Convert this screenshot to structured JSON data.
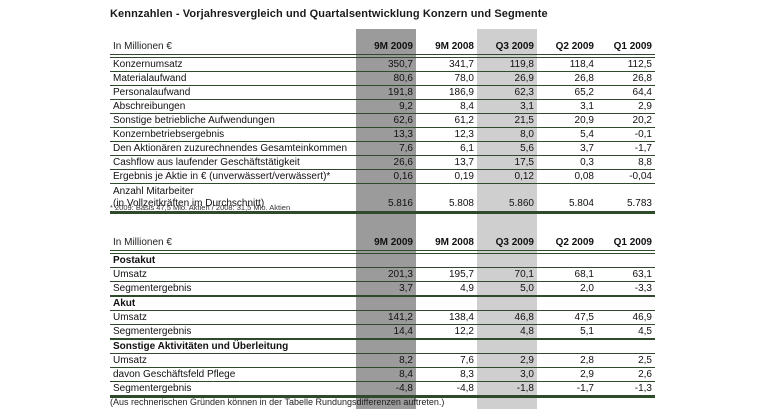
{
  "title": "Kennzahlen - Vorjahresvergleich und Quartalsentwicklung Konzern und Segmente",
  "unit_label": "In Millionen €",
  "columns": [
    "9M 2009",
    "9M 2008",
    "Q3 2009",
    "Q2 2009",
    "Q1 2009"
  ],
  "highlight": {
    "dark_column": "9M 2009",
    "light_column": "Q3 2009",
    "dark_color": "#9b9b9b",
    "light_color": "#cfcfcf",
    "rule_color": "#2e4a2a"
  },
  "konzern_table": {
    "rows": [
      {
        "label": "Konzernumsatz",
        "values": [
          "350,7",
          "341,7",
          "119,8",
          "118,4",
          "112,5"
        ]
      },
      {
        "label": "Materialaufwand",
        "values": [
          "80,6",
          "78,0",
          "26,9",
          "26,8",
          "26,8"
        ]
      },
      {
        "label": "Personalaufwand",
        "values": [
          "191,8",
          "186,9",
          "62,3",
          "65,2",
          "64,4"
        ]
      },
      {
        "label": "Abschreibungen",
        "values": [
          "9,2",
          "8,4",
          "3,1",
          "3,1",
          "2,9"
        ]
      },
      {
        "label": "Sonstige betriebliche Aufwendungen",
        "values": [
          "62,6",
          "61,2",
          "21,5",
          "20,9",
          "20,2"
        ]
      },
      {
        "label": "Konzernbetriebsergebnis",
        "values": [
          "13,3",
          "12,3",
          "8,0",
          "5,4",
          "-0,1"
        ]
      },
      {
        "label": "Den Aktionären zuzurechnendes Gesamteinkommen",
        "values": [
          "7,6",
          "6,1",
          "5,6",
          "3,7",
          "-1,7"
        ]
      },
      {
        "label": "Cashflow aus laufender Geschäftstätigkeit",
        "values": [
          "26,6",
          "13,7",
          "17,5",
          "0,3",
          "8,8"
        ]
      },
      {
        "label": "Ergebnis je Aktie in € (unverwässert/verwässert)*",
        "values": [
          "0,16",
          "0,19",
          "0,12",
          "0,08",
          "-0,04"
        ]
      },
      {
        "label": "Anzahl Mitarbeiter",
        "label2": "(in Vollzeitkräften im Durchschnitt)",
        "values": [
          "5.816",
          "5.808",
          "5.860",
          "5.804",
          "5.783"
        ]
      }
    ],
    "footnote": "* 2009: Basis 47,5 Mio. Aktien / 2008: 31,5 Mio. Aktien"
  },
  "segment_table": {
    "rows": [
      {
        "type": "section",
        "label": "Postakut"
      },
      {
        "type": "data",
        "label": "Umsatz",
        "values": [
          "201,3",
          "195,7",
          "70,1",
          "68,1",
          "63,1"
        ]
      },
      {
        "type": "data",
        "label": "Segmentergebnis",
        "values": [
          "3,7",
          "4,9",
          "5,0",
          "2,0",
          "-3,3"
        ]
      },
      {
        "type": "section",
        "label": "Akut"
      },
      {
        "type": "data",
        "label": "Umsatz",
        "values": [
          "141,2",
          "138,4",
          "46,8",
          "47,5",
          "46,9"
        ]
      },
      {
        "type": "data",
        "label": "Segmentergebnis",
        "values": [
          "14,4",
          "12,2",
          "4,8",
          "5,1",
          "4,5"
        ]
      },
      {
        "type": "section",
        "label": "Sonstige Aktivitäten und Überleitung"
      },
      {
        "type": "data",
        "label": "Umsatz",
        "values": [
          "8,2",
          "7,6",
          "2,9",
          "2,8",
          "2,5"
        ]
      },
      {
        "type": "data",
        "label": "davon Geschäftsfeld Pflege",
        "indent": true,
        "values": [
          "8,4",
          "8,3",
          "3,0",
          "2,9",
          "2,6"
        ]
      },
      {
        "type": "data",
        "label": "Segmentergebnis",
        "values": [
          "-4,8",
          "-4,8",
          "-1,8",
          "-1,7",
          "-1,3"
        ]
      }
    ]
  },
  "footer_note": "(Aus rechnerischen Gründen können in der Tabelle Rundungsdifferenzen auftreten.)"
}
